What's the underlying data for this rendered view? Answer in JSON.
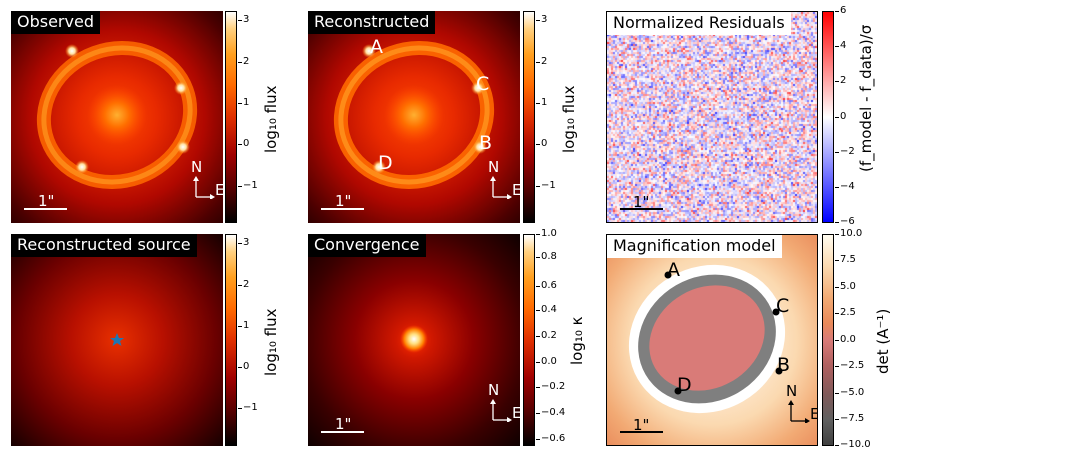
{
  "panels": {
    "observed": {
      "title": "Observed",
      "scale_label": "1\"",
      "compass_n": "N",
      "compass_e": "E"
    },
    "reconstructed": {
      "title": "Reconstructed",
      "scale_label": "1\"",
      "compass_n": "N",
      "compass_e": "E",
      "image_labels": [
        "A",
        "B",
        "C",
        "D"
      ]
    },
    "residuals": {
      "title": "Normalized Residuals",
      "scale_label": "1\""
    },
    "source": {
      "title": "Reconstructed source"
    },
    "convergence": {
      "title": "Convergence",
      "scale_label": "1\"",
      "compass_n": "N",
      "compass_e": "E"
    },
    "magnification": {
      "title": "Magnification model",
      "scale_label": "1\"",
      "compass_n": "N",
      "compass_e": "E",
      "image_labels": [
        "A",
        "B",
        "C",
        "D"
      ]
    }
  },
  "colorbars": {
    "observed": {
      "label": "log₁₀ flux",
      "ticks": [
        "3",
        "2",
        "1",
        "0",
        "−1"
      ],
      "range": [
        -1.9,
        3.2
      ]
    },
    "reconstructed": {
      "label": "log₁₀ flux",
      "ticks": [
        "3",
        "2",
        "1",
        "0",
        "−1"
      ],
      "range": [
        -1.9,
        3.2
      ]
    },
    "residuals": {
      "label": "(f_model - f_data)/σ",
      "ticks": [
        "6",
        "4",
        "2",
        "0",
        "−2",
        "−4",
        "−6"
      ],
      "range": [
        -6,
        6
      ]
    },
    "source": {
      "label": "log₁₀ flux",
      "ticks": [
        "3",
        "2",
        "1",
        "0",
        "−1"
      ],
      "range": [
        -1.9,
        3.2
      ]
    },
    "convergence": {
      "label": "log₁₀ κ",
      "ticks": [
        "1.0",
        "0.8",
        "0.6",
        "0.4",
        "0.2",
        "0.0",
        "−0.2",
        "−0.4",
        "−0.6"
      ],
      "range": [
        -0.65,
        1.0
      ]
    },
    "magnification": {
      "label": "det (A⁻¹)",
      "ticks": [
        "10.0",
        "7.5",
        "5.0",
        "2.5",
        "0.0",
        "−2.5",
        "−5.0",
        "−7.5",
        "−10.0"
      ],
      "range": [
        -10,
        10
      ]
    }
  },
  "colors": {
    "gist_heat_top": "#ffffff",
    "gist_heat_bottom": "#000000",
    "residual_pos": "#ff0000",
    "residual_neg": "#0000ff",
    "magnification_pos": "#e98a5a",
    "magnification_neg": "#707070",
    "source_star": "#1f77b4"
  },
  "chart_data": {
    "type": "heatmap",
    "lensed_image_positions": [
      "A",
      "B",
      "C",
      "D"
    ]
  }
}
